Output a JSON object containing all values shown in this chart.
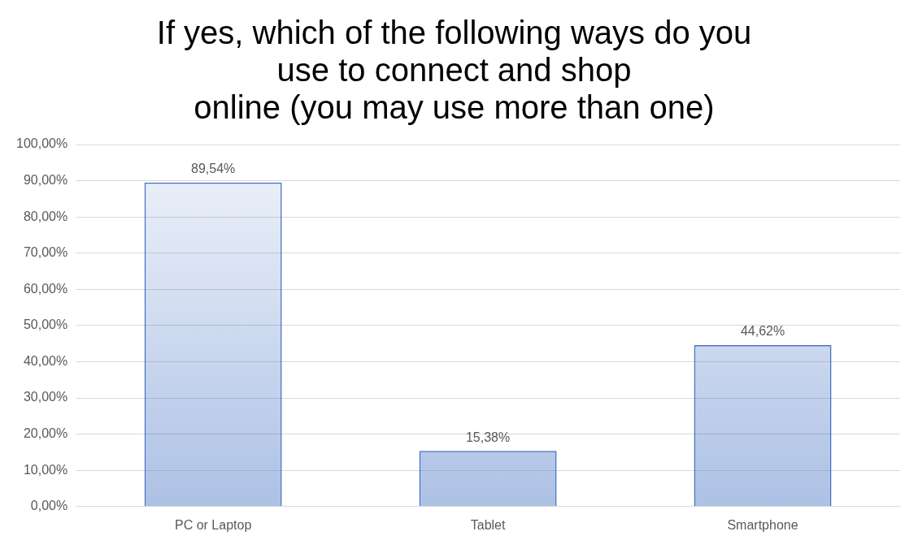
{
  "chart_data": {
    "type": "bar",
    "title": "If yes, which of the following ways do you\nuse to connect and shop\nonline (you may use more than one)",
    "categories": [
      "PC or Laptop",
      "Tablet",
      "Smartphone"
    ],
    "values": [
      89.54,
      15.38,
      44.62
    ],
    "value_labels": [
      "89,54%",
      "15,38%",
      "44,62%"
    ],
    "color": "#4472c4",
    "ylim": [
      0,
      100
    ],
    "yticks": [
      {
        "value": 0,
        "label": "0,00%"
      },
      {
        "value": 10,
        "label": "10,00%"
      },
      {
        "value": 20,
        "label": "20,00%"
      },
      {
        "value": 30,
        "label": "30,00%"
      },
      {
        "value": 40,
        "label": "40,00%"
      },
      {
        "value": 50,
        "label": "50,00%"
      },
      {
        "value": 60,
        "label": "60,00%"
      },
      {
        "value": 70,
        "label": "70,00%"
      },
      {
        "value": 80,
        "label": "80,00%"
      },
      {
        "value": 90,
        "label": "90,00%"
      },
      {
        "value": 100,
        "label": "100,00%"
      }
    ],
    "grid": "y"
  }
}
